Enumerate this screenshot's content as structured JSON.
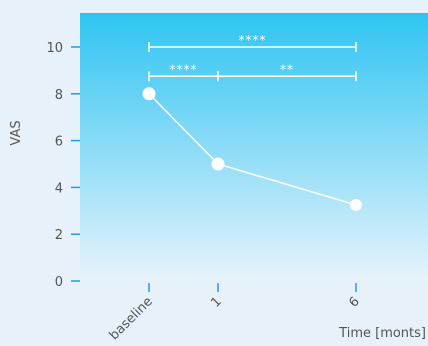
{
  "chart_data": {
    "type": "line",
    "title": "",
    "xlabel": "Time [monts]",
    "ylabel": "VAS",
    "categories": [
      "baseline",
      "1",
      "6"
    ],
    "x": [
      0,
      1,
      6
    ],
    "values": [
      8.0,
      5.0,
      3.25
    ],
    "ylim": [
      0,
      11.5
    ],
    "xlim": [
      -1.0,
      7.0
    ],
    "yticks": [
      0,
      2,
      4,
      6,
      8,
      10
    ],
    "grid": false,
    "legend": "none",
    "significance": [
      {
        "from": "baseline",
        "to": "6",
        "y": 10.0,
        "label": "****"
      },
      {
        "from": "baseline",
        "to": "1",
        "y": 8.75,
        "label": "****"
      },
      {
        "from": "1",
        "to": "6",
        "y": 8.75,
        "label": "**"
      }
    ],
    "colors": {
      "gradient_top": "#2ec4f2",
      "gradient_bottom": "#e8f3fb",
      "axis": "#1aa0e6",
      "line": "#ffffff",
      "text": "#555555"
    }
  }
}
